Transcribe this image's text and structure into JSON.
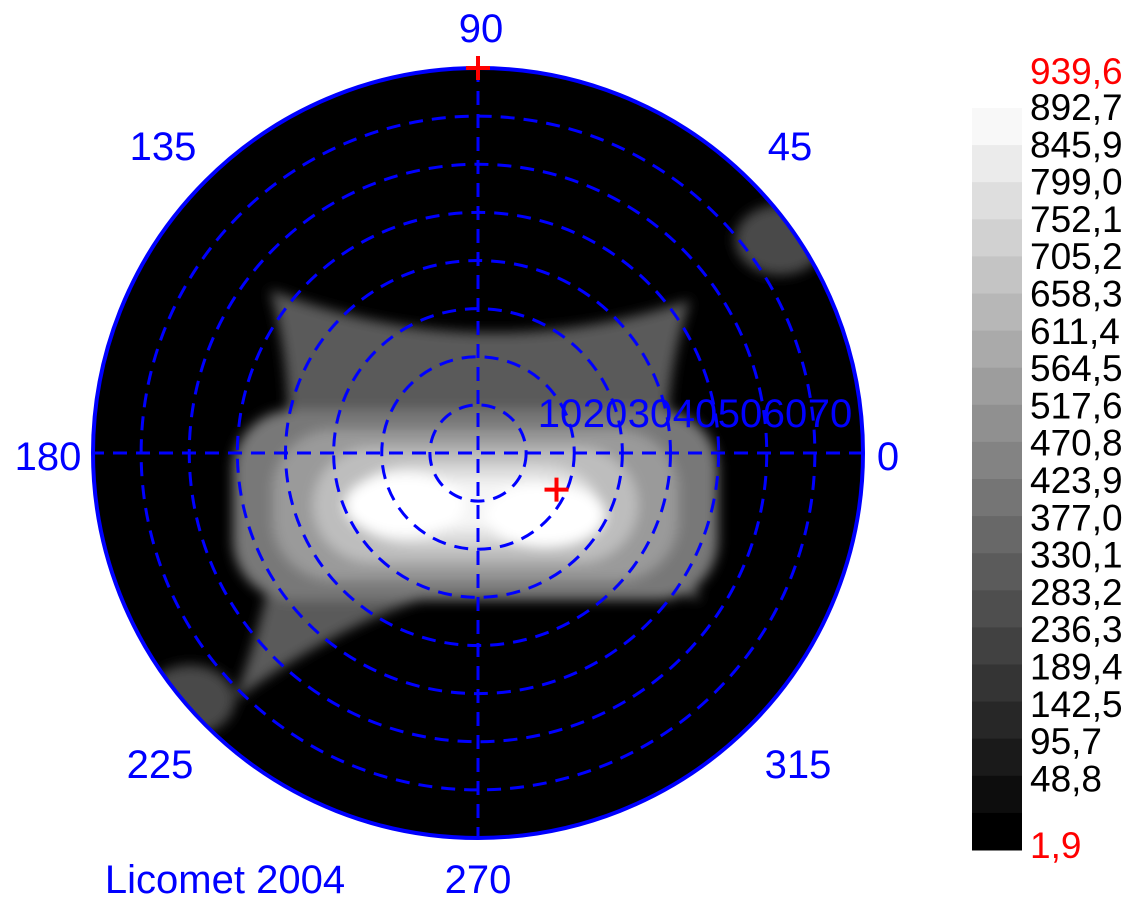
{
  "chart_data": {
    "type": "heatmap",
    "projection": "polar",
    "angle_labels": [
      "90",
      "45",
      "0",
      "315",
      "270",
      "225",
      "180",
      "135"
    ],
    "radial_labels": [
      "10",
      "20",
      "30",
      "40",
      "50",
      "60",
      "70"
    ],
    "colorbar": {
      "max_label": "939,6",
      "min_label": "1,9",
      "levels": [
        "892,7",
        "845,9",
        "799,0",
        "752,1",
        "705,2",
        "658,3",
        "611,4",
        "564,5",
        "517,6",
        "470,8",
        "423,9",
        "377,0",
        "330,1",
        "283,2",
        "236,3",
        "189,4",
        "142,5",
        "95,7",
        "48,8"
      ],
      "range": [
        1.9,
        939.6
      ],
      "steps": 20
    },
    "markers": [
      {
        "angle_deg": 90,
        "radius": 80
      },
      {
        "angle_deg": -25,
        "radius": 18
      }
    ],
    "grid": true,
    "credit": "Licomet 2004"
  },
  "colors": {
    "grid": "#0000ff",
    "labels": "#0000ff",
    "extreme_labels": "#ff0000",
    "marker": "#ff0000",
    "background": "#000000"
  }
}
